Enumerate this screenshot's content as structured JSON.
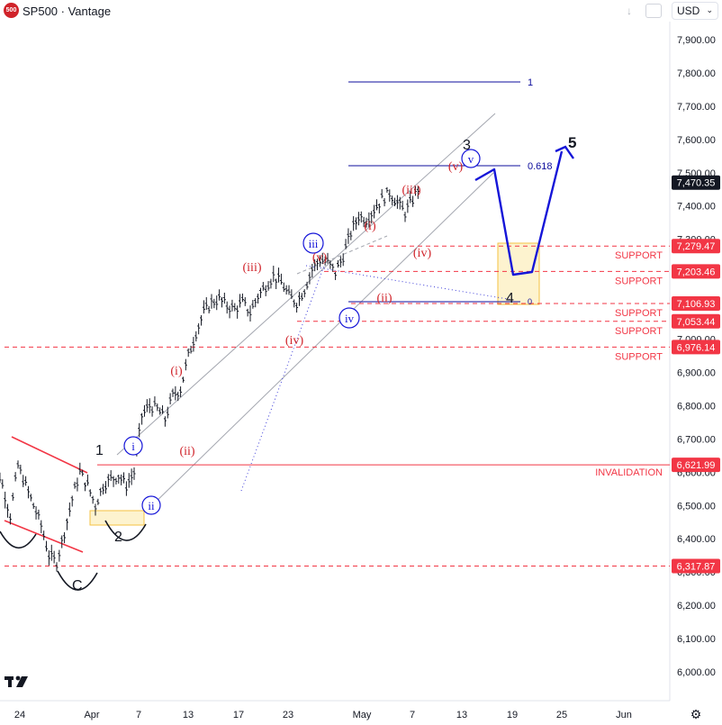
{
  "header": {
    "symbol_badge": "500",
    "title": "SP500 · Vantage",
    "currency": "USD",
    "icons": [
      "download-arrow-icon",
      "snapshot-box-icon",
      "dropdown-chevron-icon"
    ]
  },
  "chart_data": {
    "type": "line",
    "symbol": "SP500",
    "source": "Vantage",
    "series": [
      {
        "values": [
          [
            "2026-03-20",
            6700
          ],
          [
            "2026-03-21",
            6640
          ],
          [
            "2026-03-22",
            6560
          ],
          [
            "2026-03-23",
            6470
          ],
          [
            "2026-03-24",
            6620
          ],
          [
            "2026-03-25",
            6560
          ],
          [
            "2026-03-26",
            6500
          ],
          [
            "2026-03-27",
            6440
          ],
          [
            "2026-03-28",
            6350
          ],
          [
            "2026-03-29",
            6330
          ],
          [
            "2026-03-30",
            6420
          ],
          [
            "2026-03-31",
            6520
          ],
          [
            "2026-04-01",
            6600
          ],
          [
            "2026-04-02",
            6560
          ],
          [
            "2026-04-03",
            6500
          ],
          [
            "2026-04-04",
            6560
          ],
          [
            "2026-04-05",
            6580
          ],
          [
            "2026-04-06",
            6590
          ],
          [
            "2026-04-07",
            6560
          ],
          [
            "2026-04-08",
            6600
          ],
          [
            "2026-04-09",
            6770
          ],
          [
            "2026-04-10",
            6800
          ],
          [
            "2026-04-11",
            6790
          ],
          [
            "2026-04-12",
            6760
          ],
          [
            "2026-04-13",
            6830
          ],
          [
            "2026-04-14",
            6850
          ],
          [
            "2026-04-15",
            6950
          ],
          [
            "2026-04-16",
            7020
          ],
          [
            "2026-04-17",
            7080
          ],
          [
            "2026-04-18",
            7110
          ],
          [
            "2026-04-19",
            7120
          ],
          [
            "2026-04-20",
            7100
          ],
          [
            "2026-04-21",
            7090
          ],
          [
            "2026-04-22",
            7110
          ],
          [
            "2026-04-23",
            7080
          ],
          [
            "2026-04-24",
            7130
          ],
          [
            "2026-04-25",
            7160
          ],
          [
            "2026-04-26",
            7190
          ],
          [
            "2026-04-27",
            7170
          ],
          [
            "2026-04-28",
            7130
          ],
          [
            "2026-04-29",
            7110
          ],
          [
            "2026-04-30",
            7150
          ],
          [
            "2026-05-01",
            7210
          ],
          [
            "2026-05-02",
            7240
          ],
          [
            "2026-05-03",
            7230
          ],
          [
            "2026-05-04",
            7200
          ],
          [
            "2026-05-05",
            7250
          ],
          [
            "2026-05-06",
            7320
          ],
          [
            "2026-05-07",
            7370
          ],
          [
            "2026-05-08",
            7360
          ],
          [
            "2026-05-09",
            7390
          ],
          [
            "2026-05-10",
            7420
          ],
          [
            "2026-05-11",
            7440
          ],
          [
            "2026-05-12",
            7410
          ],
          [
            "2026-05-13",
            7380
          ],
          [
            "2026-05-14",
            7420
          ],
          [
            "2026-05-15",
            7470
          ]
        ]
      },
      {
        "values": [
          [
            "2026-05-15",
            7470
          ],
          [
            "2026-05-17",
            7500
          ],
          [
            "2026-05-19",
            7280
          ],
          [
            "2026-05-20",
            7180
          ],
          [
            "2026-05-21",
            7190
          ],
          [
            "2026-05-23",
            7420
          ],
          [
            "2026-05-25",
            7580
          ]
        ]
      }
    ],
    "x_ticks": [
      "24",
      "Apr",
      "7",
      "13",
      "17",
      "23",
      "May",
      "7",
      "13",
      "19",
      "25",
      "Jun"
    ],
    "y_ticks": [
      "6,000.00",
      "6,100.00",
      "6,200.00",
      "6,300.00",
      "6,400.00",
      "6,500.00",
      "6,600.00",
      "6,700.00",
      "6,800.00",
      "6,900.00",
      "7,000.00",
      "7,100.00",
      "7,200.00",
      "7,300.00",
      "7,400.00",
      "7,500.00",
      "7,600.00",
      "7,700.00",
      "7,800.00",
      "7,900.00"
    ],
    "ylim": [
      5950,
      7985
    ],
    "price_labels": [
      "7,470.35",
      "7,279.47",
      "7,203.46",
      "7,106.93",
      "7,053.44",
      "6,976.14",
      "6,621.99",
      "6,317.87"
    ],
    "current_price": "7,470.35",
    "levels": [
      {
        "value": 7279.47,
        "label": "SUPPORT",
        "style": "dashed"
      },
      {
        "value": 7203.46,
        "label": "SUPPORT",
        "style": "dashed"
      },
      {
        "value": 7106.93,
        "label": "SUPPORT",
        "style": "dashed"
      },
      {
        "value": 7053.44,
        "label": "SUPPORT",
        "style": "dashed"
      },
      {
        "value": 6976.14,
        "label": "SUPPORT",
        "style": "dashed"
      },
      {
        "value": 6621.99,
        "label": "INVALIDATION",
        "style": "solid"
      },
      {
        "value": 6317.87,
        "label": "",
        "style": "dashed"
      }
    ],
    "fib": [
      {
        "label": "1",
        "value": 7760
      },
      {
        "label": "0.618",
        "value": 7505
      },
      {
        "label": "0",
        "value": 7110
      }
    ],
    "wave_labels": {
      "black": [
        "1",
        "2",
        "3",
        "4",
        "5",
        "C"
      ],
      "blue_circled": [
        "i",
        "ii",
        "iii",
        "iv",
        "v"
      ],
      "red": [
        "(i)",
        "(ii)",
        "(iii)",
        "(iv)",
        "(v)",
        "(i)",
        "(ii)",
        "(iii)",
        "(iv)",
        "(v)"
      ]
    },
    "colors": {
      "up": "#131722",
      "resistance": "#f23645",
      "projection": "#1515d8",
      "fib": "#0d0d9c",
      "channel": "#9598a1",
      "zone": "#f5c242",
      "price_tag": "#f23645",
      "current_tag": "#131722"
    },
    "grid": false
  }
}
